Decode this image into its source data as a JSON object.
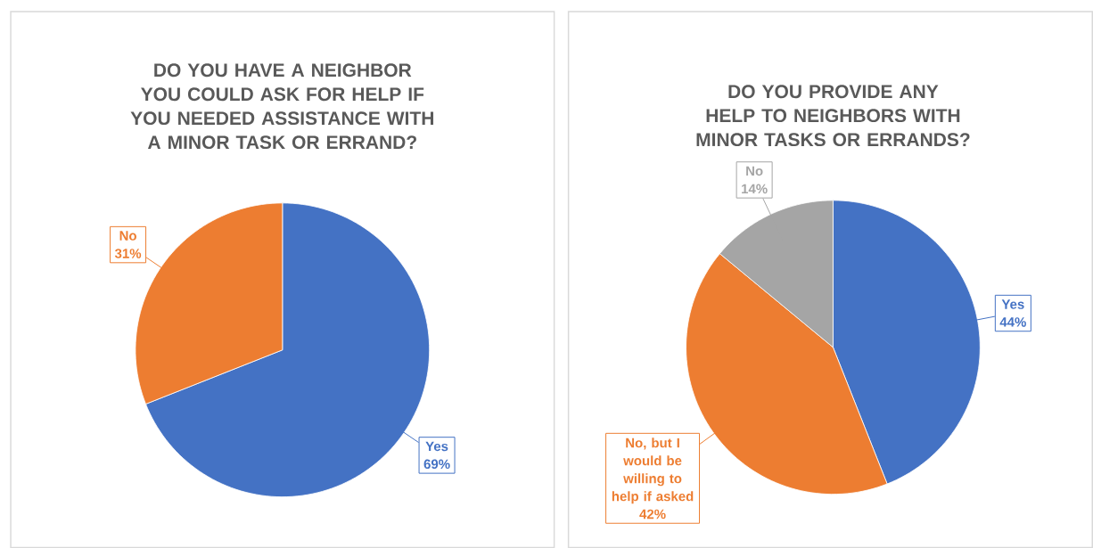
{
  "chart_data": [
    {
      "type": "pie",
      "title": "DO YOU HAVE A NEIGHBOR YOU COULD ASK FOR HELP IF YOU NEEDED ASSISTANCE WITH A MINOR TASK OR ERRAND?",
      "categories": [
        "Yes",
        "No"
      ],
      "values": [
        69,
        31
      ],
      "colors": [
        "#4472c4",
        "#ed7d31"
      ],
      "value_labels": [
        "69%",
        "31%"
      ]
    },
    {
      "type": "pie",
      "title": "DO YOU PROVIDE ANY HELP TO NEIGHBORS WITH MINOR TASKS OR ERRANDS?",
      "categories": [
        "Yes",
        "No, but I would be willing to help if asked",
        "No"
      ],
      "values": [
        44,
        42,
        14
      ],
      "colors": [
        "#4472c4",
        "#ed7d31",
        "#a5a5a5"
      ],
      "value_labels": [
        "44%",
        "42%",
        "14%"
      ]
    }
  ]
}
